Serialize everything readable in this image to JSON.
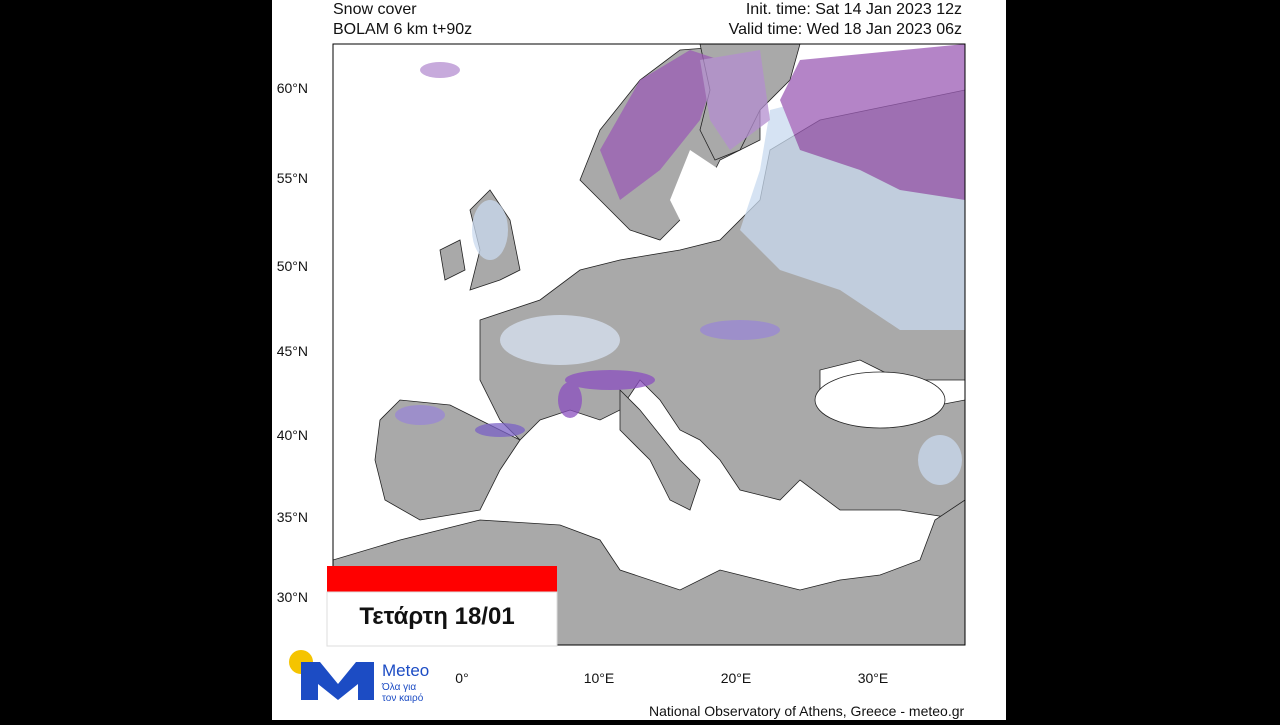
{
  "header": {
    "title": "Snow cover",
    "model": "BOLAM 6 km t+90z",
    "init_time": "Init. time: Sat 14 Jan 2023 12z",
    "valid_time": "Valid time: Wed 18 Jan 2023 06z"
  },
  "map": {
    "lat_labels": [
      "60°N",
      "55°N",
      "50°N",
      "45°N",
      "40°N",
      "35°N",
      "30°N"
    ],
    "lon_labels": [
      "0°",
      "10°E",
      "20°E",
      "30°E"
    ]
  },
  "banner": {
    "day": "Τετάρτη 18/01"
  },
  "logo": {
    "name": "Meteo",
    "tagline": [
      "Όλα για",
      "τον καιρό"
    ]
  },
  "footer": {
    "credit": "National Observatory of Athens, Greece - meteo.gr"
  }
}
